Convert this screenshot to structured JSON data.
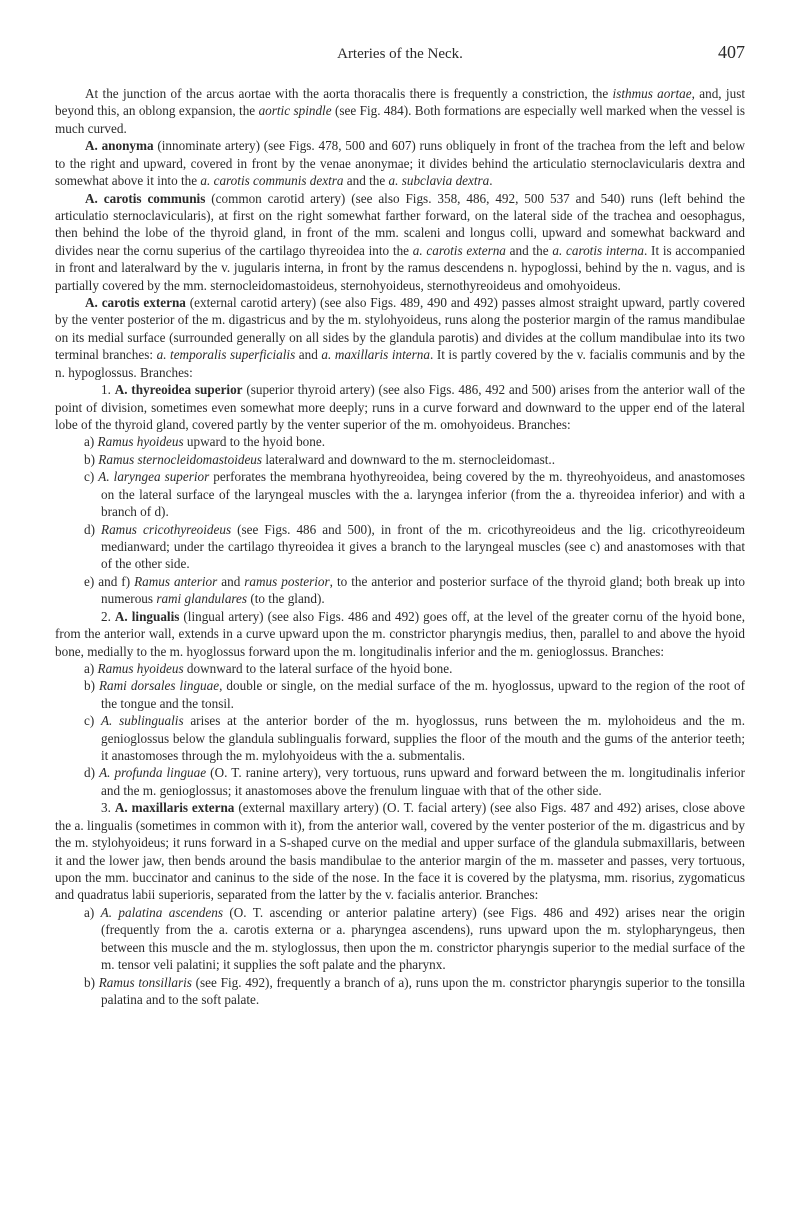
{
  "header": {
    "title": "Arteries of the Neck.",
    "page_number": "407"
  },
  "paragraphs": {
    "p1": "At the junction of the arcus aortae with the aorta thoracalis there is frequently a constriction, the <i>isthmus aortae</i>, and, just beyond this, an oblong expansion, the <i>aortic spindle</i> (see Fig. 484). Both formations are especially well marked when the vessel is much curved.",
    "p2": "<b>A. anonyma</b> (innominate artery) (see Figs. 478, 500 and 607) runs obliquely in front of the trachea from the left and below to the right and upward, covered in front by the venae anonymae; it divides behind the articulatio sternoclavicularis dextra and somewhat above it into the <i>a. carotis communis dextra</i> and the <i>a. subclavia dextra</i>.",
    "p3": "<b>A. carotis communis</b> (common carotid artery) (see also Figs. 358, 486, 492, 500 537 and 540) runs (left behind the articulatio sternoclavicularis), at first on the right somewhat farther forward, on the lateral side of the trachea and oesophagus, then behind the lobe of the thyroid gland, in front of the mm. scaleni and longus colli, upward and somewhat backward and divides near the cornu superius of the cartilago thyreoidea into the <i>a. carotis externa</i> and the <i>a. carotis interna</i>. It is accompanied in front and lateralward by the v. jugularis interna, in front by the ramus descendens n. hypoglossi, behind by the n. vagus, and is partially covered by the mm. sternocleidomastoideus, sternohyoideus, sternothyreoideus and omohyoideus.",
    "p4": "<b>A. carotis externa</b> (external carotid artery) (see also Figs. 489, 490 and 492) passes almost straight upward, partly covered by the venter posterior of the m. digastricus and by the m. stylohyoideus, runs along the posterior margin of the ramus mandibulae on its medial surface (surrounded generally on all sides by the glandula parotis) and divides at the collum mandibulae into its two terminal branches: <i>a. temporalis superficialis</i> and <i>a. maxillaris interna</i>. It is partly covered by the v. facialis communis and by the n. hypoglossus. Branches:",
    "p5": "1. <b>A. thyreoidea superior</b> (superior thyroid artery) (see also Figs. 486, 492 and 500) arises from the anterior wall of the point of division, sometimes even somewhat more deeply; runs in a curve forward and downward to the upper end of the lateral lobe of the thyroid gland, covered partly by the venter superior of the m. omohyoideus. Branches:",
    "p5a": "a) <i>Ramus hyoideus</i> upward to the hyoid bone.",
    "p5b": "b) <i>Ramus sternocleidomastoideus</i> lateralward and downward to the m. sternocleidomast..",
    "p5c": "c) <i>A. laryngea superior</i> perforates the membrana hyothyreoidea, being covered by the m. thyreohyoideus, and anastomoses on the lateral surface of the laryngeal muscles with the a. laryngea inferior (from the a. thyreoidea inferior) and with a branch of d).",
    "p5d": "d) <i>Ramus cricothyreoideus</i> (see Figs. 486 and 500), in front of the m. cricothyreoideus and the lig. cricothyreoideum medianward; under the cartilago thyreoidea it gives a branch to the laryngeal muscles (see c) and anastomoses with that of the other side.",
    "p5e": "e) and f) <i>Ramus anterior</i> and <i>ramus posterior</i>, to the anterior and posterior surface of the thyroid gland; both break up into numerous <i>rami glandulares</i> (to the gland).",
    "p6": "2. <b>A. lingualis</b> (lingual artery) (see also Figs. 486 and 492) goes off, at the level of the greater cornu of the hyoid bone, from the anterior wall, extends in a curve upward upon the m. constrictor pharyngis medius, then, parallel to and above the hyoid bone, medially to the m. hyoglossus forward upon the m. longitudinalis inferior and the m. genioglossus. Branches:",
    "p6a": "a) <i>Ramus hyoideus</i> downward to the lateral surface of the hyoid bone.",
    "p6b": "b) <i>Rami dorsales linguae</i>, double or single, on the medial surface of the m. hyoglossus, upward to the region of the root of the tongue and the tonsil.",
    "p6c": "c) <i>A. sublingualis</i> arises at the anterior border of the m. hyoglossus, runs between the m. mylohoideus and the m. genioglossus below the glandula sublingualis forward, supplies the floor of the mouth and the gums of the anterior teeth; it anastomoses through the m. mylohyoideus with the a. submentalis.",
    "p6d": "d) <i>A. profunda linguae</i> (O. T. ranine artery), very tortuous, runs upward and forward between the m. longitudinalis inferior and the m. genioglossus; it anastomoses above the frenulum linguae with that of the other side.",
    "p7": "3. <b>A. maxillaris externa</b> (external maxillary artery) (O. T. facial artery) (see also Figs. 487 and 492) arises, close above the a. lingualis (sometimes in common with it), from the anterior wall, covered by the venter posterior of the m. digastricus and by the m. stylohyoideus; it runs forward in a S-shaped curve on the medial and upper surface of the glandula submaxillaris, between it and the lower jaw, then bends around the basis mandibulae to the anterior margin of the m. masseter and passes, very tortuous, upon the mm. buccinator and caninus to the side of the nose. In the face it is covered by the platysma, mm. risorius, zygomaticus and quadratus labii superioris, separated from the latter by the v. facialis anterior. Branches:",
    "p7a": "a) <i>A. palatina ascendens</i> (O. T. ascending or anterior palatine artery) (see Figs. 486 and 492) arises near the origin (frequently from the a. carotis externa or a. pharyngea ascendens), runs upward upon the m. stylopharyngeus, then between this muscle and the m. styloglossus, then upon the m. constrictor pharyngis superior to the medial surface of the m. tensor veli palatini; it supplies the soft palate and the pharynx.",
    "p7b": "b) <i>Ramus tonsillaris</i> (see Fig. 492), frequently a branch of a), runs upon the m. constrictor pharyngis superior to the tonsilla palatina and to the soft palate."
  }
}
